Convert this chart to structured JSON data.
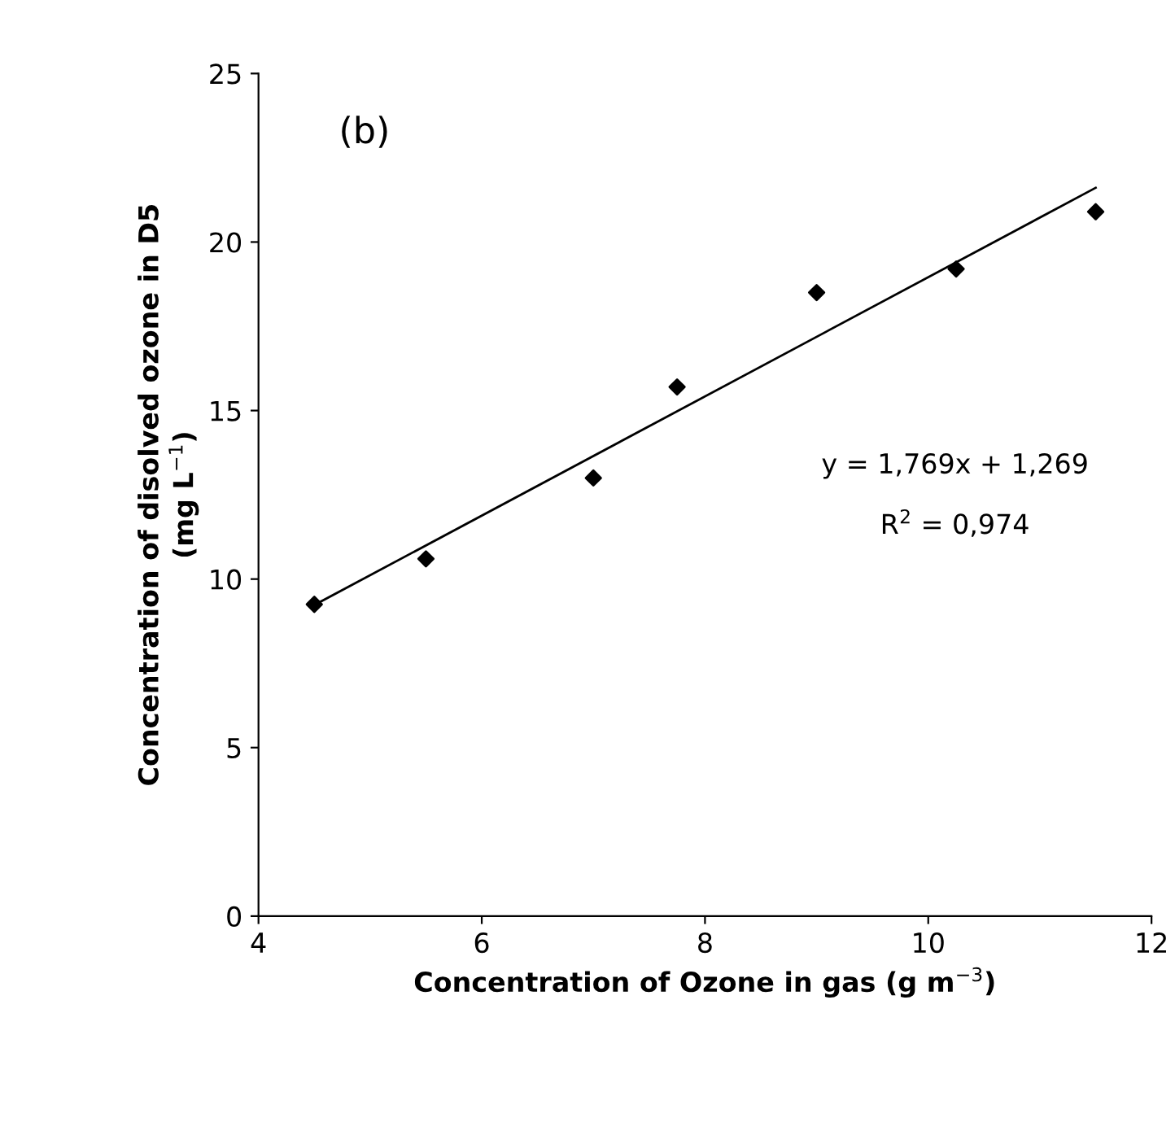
{
  "chart_data": {
    "type": "scatter",
    "xlabel": "Concentration of Ozone in gas (g m$^{−3}$)",
    "ylabel": "Concentration of disolved ozone in D5\n(mg L$^{−1}$)",
    "annotations": [
      "(b)",
      "y = 1,769x + 1,269",
      "R$^{2}$ = 0,974"
    ],
    "x": [
      4.5,
      5.5,
      7,
      7.75,
      9,
      10.25,
      11.5
    ],
    "series": [
      {
        "color": "#000000",
        "marker": "diamond",
        "values": [
          9.25,
          10.6,
          13.0,
          15.7,
          18.5,
          19.2,
          20.9
        ]
      },
      {
        "type": "line",
        "color": "#000000",
        "marker": "none",
        "x": [
          4.5,
          11.5
        ],
        "values": [
          9.23,
          21.61
        ]
      }
    ],
    "xlim": [
      4,
      12
    ],
    "xticks": [
      4,
      6,
      8,
      10,
      12
    ],
    "ylim": [
      0,
      25
    ],
    "yticks": [
      0,
      5,
      10,
      15,
      20,
      25
    ],
    "grid": false,
    "legend": false
  }
}
